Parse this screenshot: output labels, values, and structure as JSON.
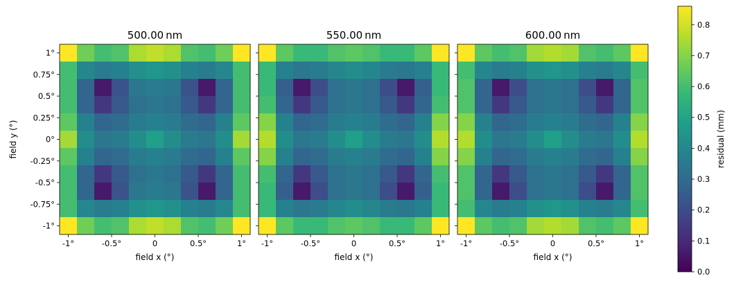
{
  "chart_data": {
    "type": "heatmap",
    "panels": [
      {
        "title": "500.00 nm",
        "xlabel": "field x (°)",
        "ylabel": "field y (°)",
        "values": [
          [
            0.86,
            0.67,
            0.6,
            0.62,
            0.75,
            0.78,
            0.75,
            0.62,
            0.6,
            0.67,
            0.86
          ],
          [
            0.6,
            0.4,
            0.36,
            0.38,
            0.43,
            0.45,
            0.43,
            0.38,
            0.36,
            0.4,
            0.6
          ],
          [
            0.6,
            0.28,
            0.06,
            0.22,
            0.34,
            0.36,
            0.34,
            0.22,
            0.06,
            0.28,
            0.6
          ],
          [
            0.6,
            0.28,
            0.14,
            0.24,
            0.32,
            0.34,
            0.32,
            0.24,
            0.14,
            0.28,
            0.6
          ],
          [
            0.64,
            0.38,
            0.28,
            0.3,
            0.36,
            0.38,
            0.36,
            0.3,
            0.28,
            0.38,
            0.64
          ],
          [
            0.74,
            0.42,
            0.34,
            0.36,
            0.42,
            0.48,
            0.42,
            0.36,
            0.34,
            0.42,
            0.74
          ],
          [
            0.64,
            0.38,
            0.28,
            0.3,
            0.36,
            0.38,
            0.36,
            0.3,
            0.28,
            0.38,
            0.64
          ],
          [
            0.6,
            0.28,
            0.14,
            0.24,
            0.32,
            0.34,
            0.32,
            0.24,
            0.14,
            0.28,
            0.6
          ],
          [
            0.6,
            0.28,
            0.06,
            0.22,
            0.34,
            0.36,
            0.34,
            0.22,
            0.06,
            0.28,
            0.6
          ],
          [
            0.6,
            0.4,
            0.36,
            0.38,
            0.43,
            0.45,
            0.43,
            0.38,
            0.36,
            0.4,
            0.6
          ],
          [
            0.86,
            0.67,
            0.6,
            0.62,
            0.75,
            0.78,
            0.75,
            0.62,
            0.6,
            0.67,
            0.86
          ]
        ]
      },
      {
        "title": "550.00 nm",
        "xlabel": "field x (°)",
        "ylabel": "",
        "values": [
          [
            0.86,
            0.64,
            0.58,
            0.58,
            0.62,
            0.64,
            0.62,
            0.58,
            0.58,
            0.64,
            0.86
          ],
          [
            0.58,
            0.38,
            0.34,
            0.36,
            0.4,
            0.42,
            0.4,
            0.36,
            0.34,
            0.38,
            0.58
          ],
          [
            0.58,
            0.26,
            0.06,
            0.2,
            0.32,
            0.34,
            0.32,
            0.2,
            0.06,
            0.26,
            0.58
          ],
          [
            0.6,
            0.28,
            0.14,
            0.24,
            0.32,
            0.34,
            0.32,
            0.24,
            0.14,
            0.28,
            0.6
          ],
          [
            0.7,
            0.38,
            0.28,
            0.3,
            0.36,
            0.38,
            0.36,
            0.3,
            0.28,
            0.38,
            0.7
          ],
          [
            0.76,
            0.42,
            0.34,
            0.36,
            0.42,
            0.48,
            0.42,
            0.36,
            0.34,
            0.42,
            0.76
          ],
          [
            0.7,
            0.38,
            0.28,
            0.3,
            0.36,
            0.38,
            0.36,
            0.3,
            0.28,
            0.38,
            0.7
          ],
          [
            0.6,
            0.28,
            0.14,
            0.24,
            0.32,
            0.34,
            0.32,
            0.24,
            0.14,
            0.28,
            0.6
          ],
          [
            0.58,
            0.26,
            0.06,
            0.2,
            0.32,
            0.34,
            0.32,
            0.2,
            0.06,
            0.26,
            0.58
          ],
          [
            0.58,
            0.38,
            0.34,
            0.36,
            0.4,
            0.42,
            0.4,
            0.36,
            0.34,
            0.38,
            0.58
          ],
          [
            0.86,
            0.64,
            0.58,
            0.58,
            0.62,
            0.64,
            0.62,
            0.58,
            0.58,
            0.64,
            0.86
          ]
        ]
      },
      {
        "title": "600.00 nm",
        "xlabel": "field x (°)",
        "ylabel": "",
        "values": [
          [
            0.86,
            0.64,
            0.6,
            0.62,
            0.74,
            0.76,
            0.74,
            0.62,
            0.6,
            0.64,
            0.86
          ],
          [
            0.6,
            0.4,
            0.36,
            0.38,
            0.43,
            0.45,
            0.43,
            0.38,
            0.36,
            0.4,
            0.6
          ],
          [
            0.62,
            0.28,
            0.06,
            0.2,
            0.32,
            0.34,
            0.32,
            0.2,
            0.06,
            0.28,
            0.62
          ],
          [
            0.62,
            0.28,
            0.14,
            0.24,
            0.32,
            0.34,
            0.32,
            0.24,
            0.14,
            0.28,
            0.62
          ],
          [
            0.7,
            0.38,
            0.28,
            0.3,
            0.36,
            0.38,
            0.36,
            0.3,
            0.28,
            0.38,
            0.7
          ],
          [
            0.76,
            0.42,
            0.34,
            0.36,
            0.42,
            0.48,
            0.42,
            0.36,
            0.34,
            0.42,
            0.76
          ],
          [
            0.7,
            0.38,
            0.28,
            0.3,
            0.36,
            0.38,
            0.36,
            0.3,
            0.28,
            0.38,
            0.7
          ],
          [
            0.62,
            0.28,
            0.14,
            0.24,
            0.32,
            0.34,
            0.32,
            0.24,
            0.14,
            0.28,
            0.62
          ],
          [
            0.62,
            0.28,
            0.06,
            0.2,
            0.32,
            0.34,
            0.32,
            0.2,
            0.06,
            0.28,
            0.62
          ],
          [
            0.6,
            0.4,
            0.36,
            0.38,
            0.43,
            0.45,
            0.43,
            0.38,
            0.36,
            0.4,
            0.6
          ],
          [
            0.86,
            0.64,
            0.6,
            0.62,
            0.74,
            0.76,
            0.74,
            0.62,
            0.6,
            0.64,
            0.86
          ]
        ]
      }
    ],
    "xlim": [
      -1.1,
      1.1
    ],
    "ylim": [
      -1.1,
      1.1
    ],
    "xticks": [
      -1,
      -0.5,
      0,
      0.5,
      1
    ],
    "xticklabels": [
      "-1°",
      "-0.5°",
      "0",
      "0.5°",
      "1°"
    ],
    "yticks": [
      1,
      0.75,
      0.5,
      0.25,
      0,
      -0.25,
      -0.5,
      -0.75,
      -1
    ],
    "yticklabels": [
      "1°",
      "0.75°",
      "0.5°",
      "0.25°",
      "0°",
      "-0.25°",
      "-0.5°",
      "-0.75°",
      "-1°"
    ],
    "colorbar": {
      "label": "residual (mm)",
      "colormap": "viridis",
      "range": [
        0,
        0.86
      ],
      "ticks": [
        0.0,
        0.1,
        0.2,
        0.3,
        0.4,
        0.5,
        0.6,
        0.7,
        0.8
      ],
      "ticklabels": [
        "0.0",
        "0.1",
        "0.2",
        "0.3",
        "0.4",
        "0.5",
        "0.6",
        "0.7",
        "0.8"
      ]
    },
    "grid": false
  }
}
